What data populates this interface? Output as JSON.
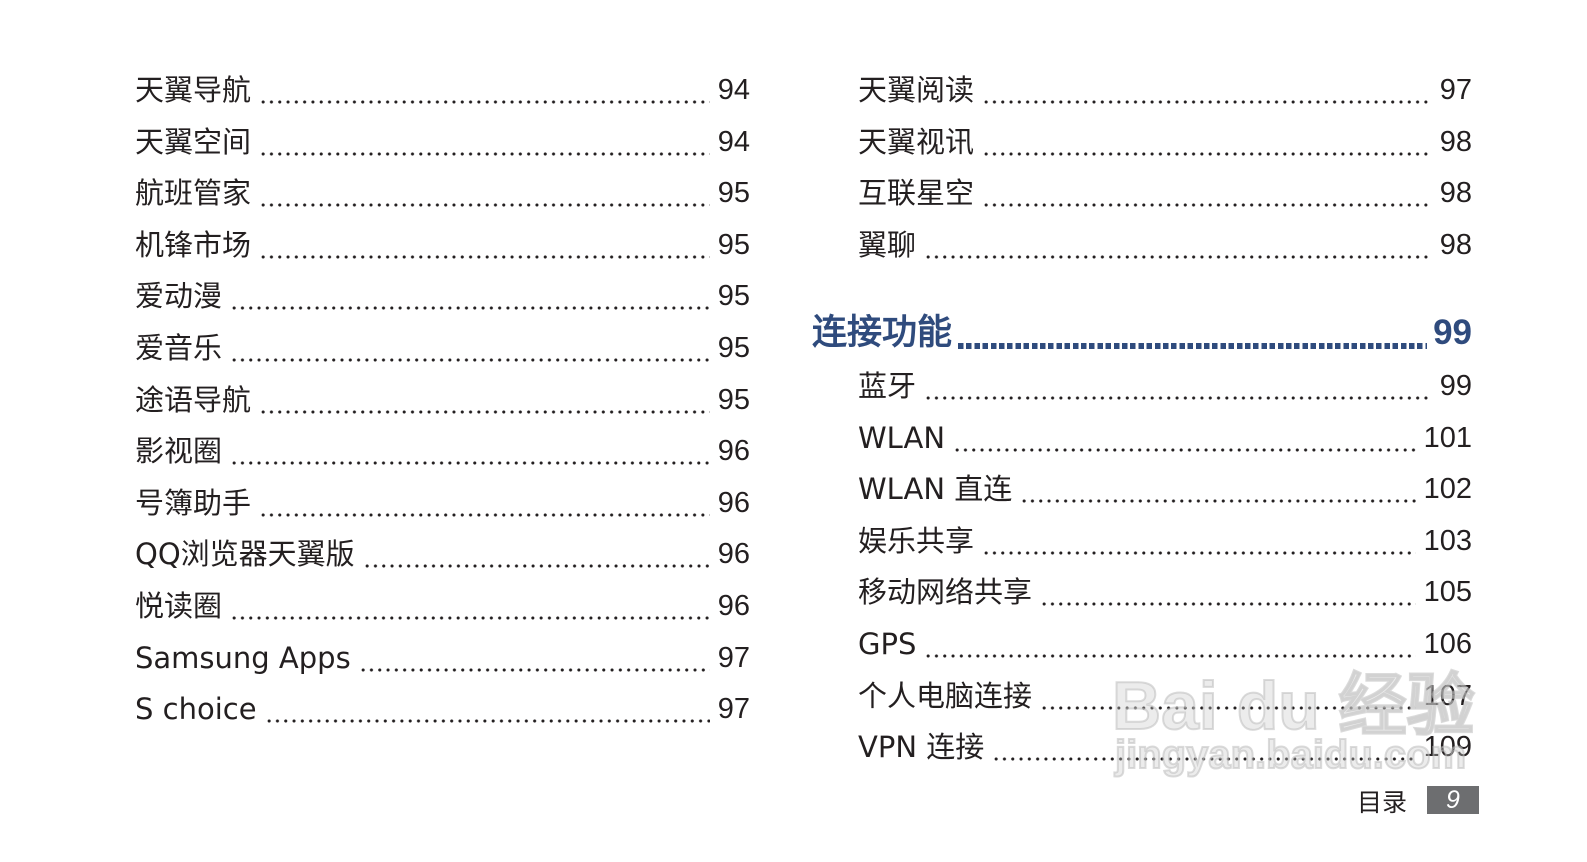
{
  "left_entries": [
    {
      "label": "天翼导航",
      "page": "94"
    },
    {
      "label": "天翼空间",
      "page": "94"
    },
    {
      "label": "航班管家",
      "page": "95"
    },
    {
      "label": "机锋市场",
      "page": "95"
    },
    {
      "label": "爱动漫",
      "page": "95"
    },
    {
      "label": "爱音乐",
      "page": "95"
    },
    {
      "label": "途语导航",
      "page": "95"
    },
    {
      "label": "影视圈",
      "page": "96"
    },
    {
      "label": "号簿助手",
      "page": "96"
    },
    {
      "label": "QQ浏览器天翼版",
      "page": "96"
    },
    {
      "label": "悦读圈",
      "page": "96"
    },
    {
      "label": "Samsung Apps",
      "page": "97"
    },
    {
      "label": "S choice",
      "page": "97"
    }
  ],
  "right_entries_top": [
    {
      "label": "天翼阅读",
      "page": "97"
    },
    {
      "label": "天翼视讯",
      "page": "98"
    },
    {
      "label": "互联星空",
      "page": "98"
    },
    {
      "label": "翼聊",
      "page": "98"
    }
  ],
  "section": {
    "title": "连接功能",
    "page": "99",
    "color": "#2f4b7d"
  },
  "section_entries": [
    {
      "label": "蓝牙",
      "page": "99"
    },
    {
      "label": "WLAN",
      "page": "101"
    },
    {
      "label": "WLAN 直连",
      "page": "102"
    },
    {
      "label": "娱乐共享",
      "page": "103"
    },
    {
      "label": "移动网络共享",
      "page": "105"
    },
    {
      "label": "GPS",
      "page": "106"
    },
    {
      "label": "个人电脑连接",
      "page": "107"
    },
    {
      "label": "VPN 连接",
      "page": "109"
    }
  ],
  "footer": {
    "label": "目录",
    "page": "9"
  },
  "watermark": {
    "logo": "Bai du 经验",
    "url": "jingyan.baidu.com"
  }
}
